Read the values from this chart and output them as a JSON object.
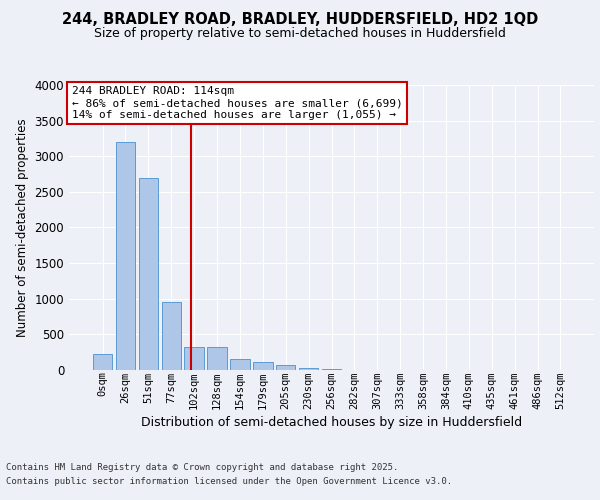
{
  "title_line1": "244, BRADLEY ROAD, BRADLEY, HUDDERSFIELD, HD2 1QD",
  "title_line2": "Size of property relative to semi-detached houses in Huddersfield",
  "xlabel": "Distribution of semi-detached houses by size in Huddersfield",
  "ylabel": "Number of semi-detached properties",
  "categories": [
    "0sqm",
    "26sqm",
    "51sqm",
    "77sqm",
    "102sqm",
    "128sqm",
    "154sqm",
    "179sqm",
    "205sqm",
    "230sqm",
    "256sqm",
    "282sqm",
    "307sqm",
    "333sqm",
    "358sqm",
    "384sqm",
    "410sqm",
    "435sqm",
    "461sqm",
    "486sqm",
    "512sqm"
  ],
  "bar_values": [
    230,
    3200,
    2700,
    950,
    320,
    320,
    150,
    110,
    65,
    25,
    10,
    5,
    3,
    2,
    1,
    1,
    0,
    0,
    0,
    0,
    0
  ],
  "bar_color": "#aec6e8",
  "bar_edge_color": "#5b9bd5",
  "pct_smaller": 86,
  "pct_larger": 14,
  "count_smaller": "6,699",
  "count_larger": "1,055",
  "vline_color": "#cc0000",
  "annotation_box_color": "#cc0000",
  "ylim": [
    0,
    4000
  ],
  "yticks": [
    0,
    500,
    1000,
    1500,
    2000,
    2500,
    3000,
    3500,
    4000
  ],
  "footer_line1": "Contains HM Land Registry data © Crown copyright and database right 2025.",
  "footer_line2": "Contains public sector information licensed under the Open Government Licence v3.0.",
  "background_color": "#edf1f7",
  "plot_background_color": "#edf1f7",
  "grid_color": "#ffffff",
  "vline_x": 3.88
}
